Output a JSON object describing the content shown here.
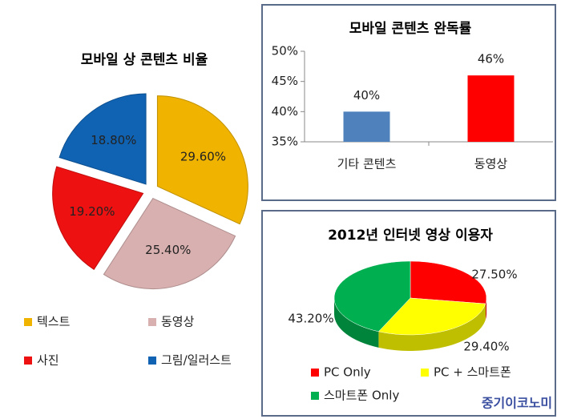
{
  "chart_data": [
    {
      "type": "pie",
      "title": "모바일 상 콘텐츠 비율",
      "exploded": true,
      "categories": [
        "텍스트",
        "동영상",
        "사진",
        "그림/일러스트"
      ],
      "values": [
        29.6,
        25.4,
        19.2,
        18.8
      ],
      "value_labels": [
        "29.60%",
        "25.40%",
        "19.20%",
        "18.80%"
      ],
      "colors": [
        "#f0b400",
        "#d9b0b0",
        "#ee1111",
        "#1063b3"
      ]
    },
    {
      "type": "bar",
      "title": "모바일 콘텐츠 완독률",
      "categories": [
        "기타 콘텐츠",
        "동영상"
      ],
      "values": [
        40,
        46
      ],
      "value_labels": [
        "40%",
        "46%"
      ],
      "colors": [
        "#4f81bd",
        "#ff0000"
      ],
      "ylim": [
        35,
        50
      ],
      "yticks": [
        {
          "value": 35,
          "label": "35%"
        },
        {
          "value": 40,
          "label": "40%"
        },
        {
          "value": 45,
          "label": "45%"
        },
        {
          "value": 50,
          "label": "50%"
        }
      ]
    },
    {
      "type": "pie",
      "title": "2012년 인터넷 영상 이용자",
      "three_d": true,
      "categories": [
        "PC Only",
        "PC + 스마트폰",
        "스마트폰 Only"
      ],
      "values": [
        27.5,
        29.4,
        43.2
      ],
      "value_labels": [
        "27.50%",
        "29.40%",
        "43.20%"
      ],
      "colors": [
        "#ff0000",
        "#ffff00",
        "#00b050"
      ]
    }
  ],
  "watermark": "중기이코노미"
}
